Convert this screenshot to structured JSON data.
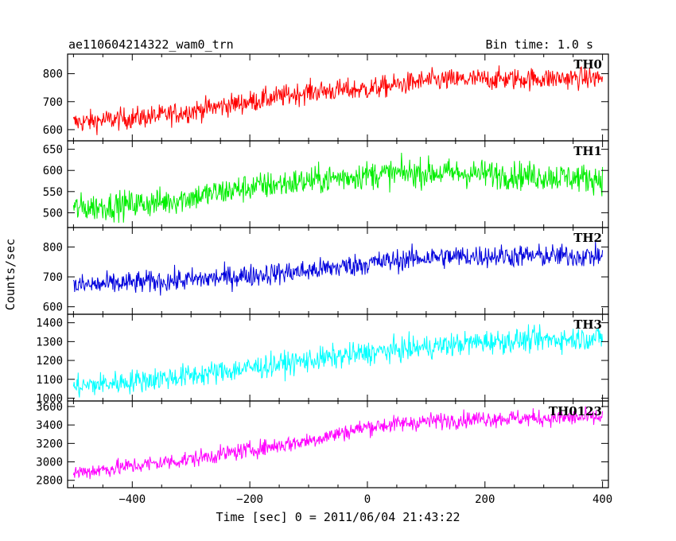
{
  "header": {
    "title": "ae110604214322_wam0_trn",
    "bin_time": "Bin time: 1.0 s"
  },
  "chart_data": {
    "type": "line",
    "xlabel": "Time [sec] 0 = 2011/06/04 21:43:22",
    "ylabel": "Counts/sec",
    "xlim": [
      -510,
      410
    ],
    "x_ticks": [
      -400,
      -200,
      0,
      200,
      400
    ],
    "x_tick_labels": [
      "−400",
      "−200",
      "0",
      "200",
      "400"
    ],
    "x_step_sec": 1.0,
    "x_range_data": [
      -500,
      400
    ],
    "panels": [
      {
        "name": "TH0",
        "color": "#ff0000",
        "ylim": [
          560,
          870
        ],
        "yticks": [
          600,
          700,
          800
        ],
        "trend": [
          [
            -500,
            625
          ],
          [
            -350,
            650
          ],
          [
            -200,
            700
          ],
          [
            -100,
            735
          ],
          [
            0,
            745
          ],
          [
            100,
            775
          ],
          [
            200,
            780
          ],
          [
            400,
            785
          ]
        ],
        "noise": 28
      },
      {
        "name": "TH1",
        "color": "#00ee00",
        "ylim": [
          465,
          670
        ],
        "yticks": [
          500,
          550,
          600,
          650
        ],
        "trend": [
          [
            -500,
            510
          ],
          [
            -350,
            525
          ],
          [
            -200,
            560
          ],
          [
            0,
            590
          ],
          [
            100,
            595
          ],
          [
            200,
            592
          ],
          [
            400,
            580
          ]
        ],
        "noise": 24
      },
      {
        "name": "TH2",
        "color": "#0000dd",
        "ylim": [
          575,
          865
        ],
        "yticks": [
          600,
          700,
          800
        ],
        "trend": [
          [
            -500,
            670
          ],
          [
            -300,
            690
          ],
          [
            -100,
            720
          ],
          [
            0,
            745
          ],
          [
            100,
            765
          ],
          [
            200,
            770
          ],
          [
            400,
            770
          ]
        ],
        "noise": 27
      },
      {
        "name": "TH3",
        "color": "#00ffff",
        "ylim": [
          985,
          1445
        ],
        "yticks": [
          1000,
          1100,
          1200,
          1300,
          1400
        ],
        "trend": [
          [
            -500,
            1060
          ],
          [
            -300,
            1120
          ],
          [
            -100,
            1200
          ],
          [
            0,
            1240
          ],
          [
            200,
            1300
          ],
          [
            400,
            1320
          ]
        ],
        "noise": 45
      },
      {
        "name": "TH0123",
        "color": "#ff00ff",
        "ylim": [
          2720,
          3660
        ],
        "yticks": [
          2800,
          3000,
          3200,
          3400,
          3600
        ],
        "trend": [
          [
            -500,
            2880
          ],
          [
            -300,
            3030
          ],
          [
            -100,
            3230
          ],
          [
            0,
            3380
          ],
          [
            100,
            3440
          ],
          [
            200,
            3470
          ],
          [
            400,
            3480
          ]
        ],
        "noise": 65
      }
    ]
  }
}
